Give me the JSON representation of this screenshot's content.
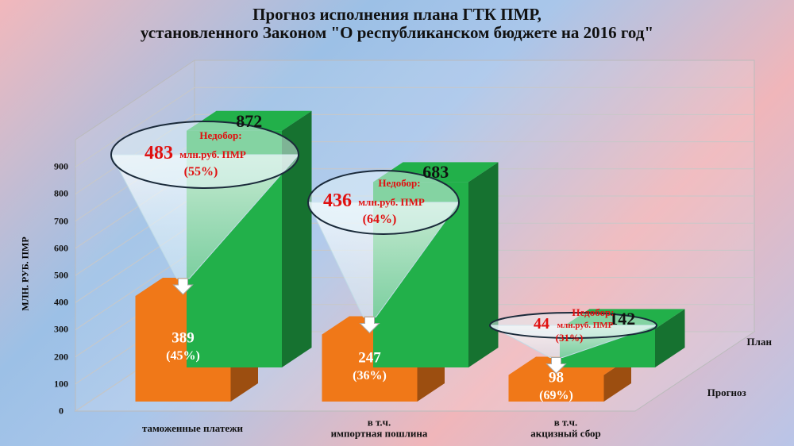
{
  "chart_data": {
    "type": "bar3d",
    "title": "Прогноз исполнения плана ГТК ПМР,\nустановленного Законом \"О республиканском бюджете на 2016 год\"",
    "y_label": "МЛН. РУБ. ПМР",
    "categories": [
      "таможенные платежи",
      "в т.ч.\nимпортная пошлина",
      "в т.ч.\nакцизный сбор"
    ],
    "series": [
      {
        "name": "Прогноз",
        "color": "#f07818",
        "values": [
          389,
          247,
          98
        ],
        "share_labels": [
          "(45%)",
          "(36%)",
          "(69%)"
        ]
      },
      {
        "name": "План",
        "color": "#22b04a",
        "values": [
          872,
          683,
          142
        ]
      }
    ],
    "ylim": [
      0,
      1000
    ],
    "yticks": [
      0,
      100,
      200,
      300,
      400,
      500,
      600,
      700,
      800,
      900
    ],
    "grid": true,
    "annotations": [
      {
        "title": "Недобор:",
        "value": 483,
        "unit": "млн.руб. ПМР",
        "share": "(55%)"
      },
      {
        "title": "Недобор:",
        "value": 436,
        "unit": "млн.руб. ПМР",
        "share": "(64%)"
      },
      {
        "title": "Недобор:",
        "value": 44,
        "unit": "млн.руб. ПМР",
        "share": "(31%)"
      }
    ]
  }
}
